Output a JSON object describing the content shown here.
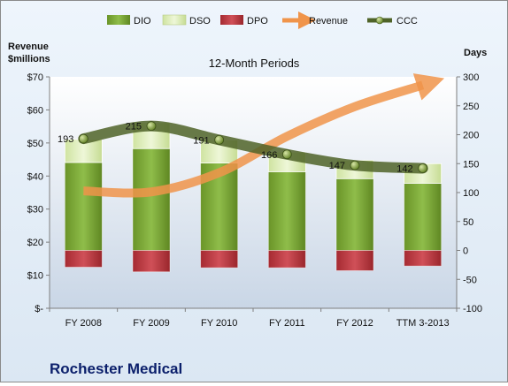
{
  "chart_data": {
    "type": "bar",
    "title": "12-Month Periods",
    "company": "Rochester Medical",
    "categories": [
      "FY 2008",
      "FY 2009",
      "FY 2010",
      "FY 2011",
      "FY 2012",
      "TTM 3-2013"
    ],
    "y_left": {
      "label_line1": "Revenue",
      "label_line2": "$millions",
      "ylim": [
        0,
        70
      ],
      "ticks": [
        0,
        10,
        20,
        30,
        40,
        50,
        60,
        70
      ],
      "tick_labels": [
        "$-",
        "$10",
        "$20",
        "$30",
        "$40",
        "$50",
        "$60",
        "$70"
      ]
    },
    "y_right": {
      "label": "Days",
      "ylim": [
        -100,
        300
      ],
      "ticks": [
        -100,
        -50,
        0,
        50,
        100,
        150,
        200,
        250,
        300
      ],
      "tick_labels": [
        "-100",
        "-50",
        "0",
        "50",
        "100",
        "150",
        "200",
        "250",
        "300"
      ]
    },
    "legend": [
      "DIO",
      "DSO",
      "DPO",
      "Revenue",
      "CCC"
    ],
    "legend_position": "top",
    "series": [
      {
        "name": "DIO",
        "axis": "right",
        "values": [
          152,
          176,
          151,
          136,
          124,
          116
        ],
        "color": "#6e9a2a"
      },
      {
        "name": "DSO",
        "axis": "right",
        "values": [
          40,
          45,
          40,
          34,
          32,
          34
        ],
        "color": "#dcecb5"
      },
      {
        "name": "DPO",
        "axis": "right",
        "values": [
          -29,
          -37,
          -30,
          -30,
          -35,
          -27
        ],
        "color": "#b8343b"
      },
      {
        "name": "Revenue",
        "axis": "left",
        "values": [
          35.5,
          35.2,
          41.0,
          52.0,
          61.0,
          67.5
        ],
        "color": "#f0944a"
      },
      {
        "name": "CCC",
        "axis": "right",
        "values": [
          193,
          215,
          191,
          166,
          147,
          142
        ],
        "labels": [
          "193",
          "215",
          "191",
          "166",
          "147",
          "142"
        ],
        "color": "#556b2f"
      }
    ],
    "grid": false
  }
}
